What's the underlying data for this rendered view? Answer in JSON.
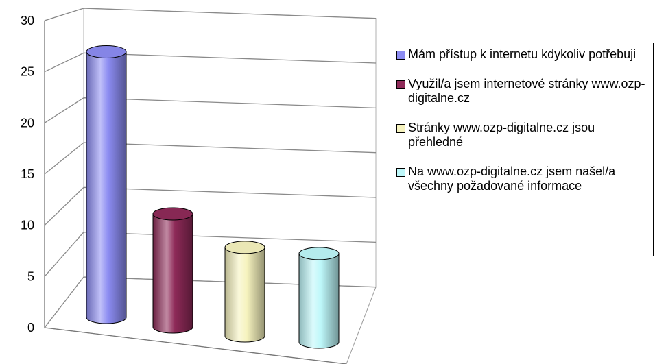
{
  "chart_data": {
    "type": "bar",
    "style": "3d-cylinder",
    "title": "",
    "xlabel": "",
    "ylabel": "",
    "ylim": [
      0,
      30
    ],
    "yticks": [
      0,
      5,
      10,
      15,
      20,
      25,
      30
    ],
    "grid": true,
    "legend_position": "right",
    "series": [
      {
        "name": "Mám přístup k internetu kdykoliv potřebuji",
        "value": 27,
        "color": "#8C8CF2"
      },
      {
        "name": "Využil/a jsem internetové stránky www.ozp-digitalne.cz",
        "value": 11.5,
        "color": "#8E2A58"
      },
      {
        "name": "Stránky www.ozp-digitalne.cz jsou přehledné",
        "value": 9,
        "color": "#F6F3BE"
      },
      {
        "name": "Na www.ozp-digitalne.cz jsem našel/a všechny požadované informace",
        "value": 9,
        "color": "#BDF7F9"
      }
    ]
  }
}
